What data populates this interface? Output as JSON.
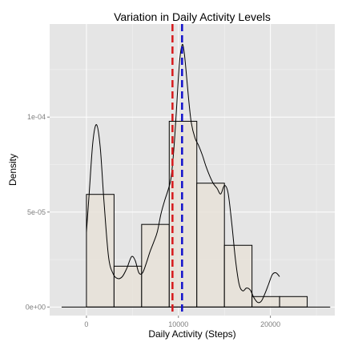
{
  "chart_data": {
    "type": "bar",
    "title": "Variation in Daily Activity Levels",
    "xlabel": "Daily Activity (Steps)",
    "ylabel": "Density",
    "xlim": [
      -4000,
      27000
    ],
    "ylim": [
      -4.5e-06,
      0.000149
    ],
    "x_ticks": [
      0,
      10000,
      20000
    ],
    "x_tick_labels": [
      "0",
      "10000",
      "20000"
    ],
    "y_ticks": [
      0,
      5e-05,
      0.0001
    ],
    "y_tick_labels": [
      "0e+00",
      "5e-05",
      "1e-04"
    ],
    "grid": true,
    "bin_width": 3000,
    "bins": [
      {
        "start": 0,
        "end": 3000,
        "density": 5.93e-05
      },
      {
        "start": 3000,
        "end": 6000,
        "density": 2.15e-05
      },
      {
        "start": 6000,
        "end": 9000,
        "density": 4.35e-05
      },
      {
        "start": 9000,
        "end": 12000,
        "density": 9.78e-05
      },
      {
        "start": 12000,
        "end": 15000,
        "density": 6.52e-05
      },
      {
        "start": 15000,
        "end": 18000,
        "density": 3.25e-05
      },
      {
        "start": 18000,
        "end": 21000,
        "density": 5.5e-06
      },
      {
        "start": 21000,
        "end": 24000,
        "density": 5.5e-06
      }
    ],
    "density_curve": {
      "x": [
        0,
        300,
        700,
        1100,
        1500,
        1900,
        2400,
        2900,
        3400,
        3900,
        4400,
        4900,
        5300,
        5700,
        6100,
        6500,
        6900,
        7300,
        7700,
        8100,
        8500,
        8900,
        9200,
        9500,
        9800,
        10100,
        10400,
        10600,
        10800,
        11100,
        11400,
        11800,
        12200,
        12600,
        13000,
        13400,
        13800,
        14200,
        14600,
        15000,
        15400,
        15800,
        16200,
        16600,
        17000,
        17400,
        17800,
        18200,
        18600,
        19000,
        19400,
        19800,
        20200,
        20600,
        21000
      ],
      "y": [
        3.95e-05,
        6e-05,
        8.7e-05,
        9.6e-05,
        8.4e-05,
        5.6e-05,
        2.65e-05,
        1.75e-05,
        1.5e-05,
        1.6e-05,
        2.05e-05,
        2.65e-05,
        2.45e-05,
        1.8e-05,
        1.8e-05,
        2.3e-05,
        2.9e-05,
        3.4e-05,
        3.95e-05,
        4.9e-05,
        5.6e-05,
        6.2e-05,
        6.8e-05,
        8.3e-05,
        0.000105,
        0.000128,
        0.000138,
        0.000135,
        0.000126,
        0.00011,
        9.7e-05,
        8.9e-05,
        8.5e-05,
        8e-05,
        7.4e-05,
        6.9e-05,
        6.5e-05,
        6.25e-05,
        5.95e-05,
        6.4e-05,
        6e-05,
        4.4e-05,
        2.5e-05,
        1.2e-05,
        8.5e-06,
        1e-05,
        9e-06,
        5e-06,
        2.5e-06,
        3e-06,
        7e-06,
        1.2e-05,
        1.7e-05,
        1.8e-05,
        1.6e-05
      ]
    },
    "reference_lines": [
      {
        "x": 9354,
        "color": "#d7191c"
      },
      {
        "x": 10395,
        "color": "#1111cc"
      }
    ]
  }
}
